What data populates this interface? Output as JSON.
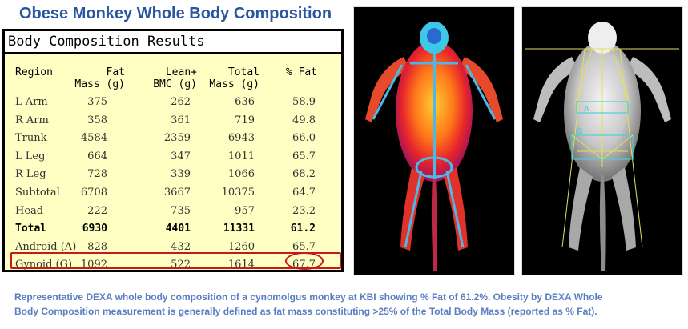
{
  "title": "Obese Monkey Whole Body Composition",
  "table": {
    "heading": "Body Composition Results",
    "columns": {
      "region": "Region",
      "fat_line1": "Fat",
      "fat_line2": "Mass (g)",
      "lean_line1": "Lean+",
      "lean_line2": "BMC (g)",
      "total_line1": "Total",
      "total_line2": "Mass (g)",
      "pct": "% Fat"
    },
    "rows": [
      {
        "region": "L Arm",
        "fat": "375",
        "lean": "262",
        "total": "636",
        "pct": "58.9"
      },
      {
        "region": "R Arm",
        "fat": "358",
        "lean": "361",
        "total": "719",
        "pct": "49.8"
      },
      {
        "region": "Trunk",
        "fat": "4584",
        "lean": "2359",
        "total": "6943",
        "pct": "66.0"
      },
      {
        "region": "L Leg",
        "fat": "664",
        "lean": "347",
        "total": "1011",
        "pct": "65.7"
      },
      {
        "region": "R Leg",
        "fat": "728",
        "lean": "339",
        "total": "1066",
        "pct": "68.2"
      },
      {
        "region": "Subtotal",
        "fat": "6708",
        "lean": "3667",
        "total": "10375",
        "pct": "64.7"
      },
      {
        "region": "Head",
        "fat": "222",
        "lean": "735",
        "total": "957",
        "pct": "23.2"
      },
      {
        "region": "Total",
        "fat": "6930",
        "lean": "4401",
        "total": "11331",
        "pct": "61.2"
      },
      {
        "region": "Android (A)",
        "fat": "828",
        "lean": "432",
        "total": "1260",
        "pct": "65.7"
      },
      {
        "region": "Gynoid (G)",
        "fat": "1092",
        "lean": "522",
        "total": "1614",
        "pct": "67.7"
      }
    ]
  },
  "images": {
    "left_label": "",
    "right_labels": [
      "A",
      "G"
    ]
  },
  "caption": {
    "line1": "Representative  DEXA whole body composition of a cynomolgus monkey at KBI showing % Fat of 61.2%.  Obesity by DEXA Whole",
    "line2": "Body Composition measurement is generally defined as fat mass constituting >25% of the Total Body Mass (reported  as % Fat)."
  },
  "colors": {
    "title": "#2a55a0",
    "table_bg": "#ffffc4",
    "highlight": "#c8181d",
    "caption": "#5a7ec2"
  }
}
